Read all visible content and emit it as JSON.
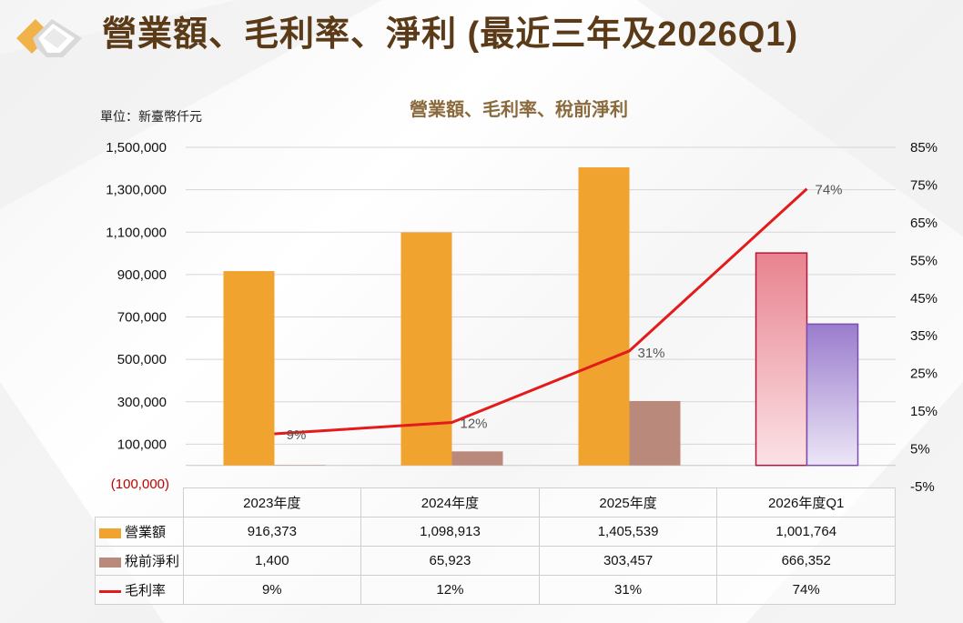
{
  "page": {
    "title": "營業額、毛利率、淨利 (最近三年及2026Q1)"
  },
  "chart_data": {
    "type": "bar",
    "title": "營業額、毛利率、稅前淨利",
    "unit_label": "單位：新臺幣仟元",
    "categories": [
      "2023年度",
      "2024年度",
      "2025年度",
      "2026年度Q1"
    ],
    "series": [
      {
        "name": "營業額",
        "kind": "bar",
        "axis": "left",
        "color": "#f0a32e",
        "values": [
          916373,
          1098913,
          1405539,
          1001764
        ],
        "display": [
          "916,373",
          "1,098,913",
          "1,405,539",
          "1,001,764"
        ]
      },
      {
        "name": "稅前淨利",
        "kind": "bar",
        "axis": "left",
        "color": "#b98a7c",
        "values": [
          1400,
          65923,
          303457,
          666352
        ],
        "display": [
          "1,400",
          "65,923",
          "303,457",
          "666,352"
        ]
      },
      {
        "name": "毛利率",
        "kind": "line",
        "axis": "right",
        "color": "#e31b1b",
        "values": [
          9,
          12,
          31,
          74
        ],
        "display": [
          "9%",
          "12%",
          "31%",
          "74%"
        ]
      }
    ],
    "highlight_category": "2026年度Q1",
    "highlight_colors": {
      "revenue_top": "#e8838f",
      "revenue_bottom": "#fbe2e6",
      "revenue_border": "#b5163a",
      "profit_top": "#9a7ccd",
      "profit_bottom": "#ece6f6",
      "profit_border": "#7a4fb0"
    },
    "y_left": {
      "ylim": [
        -100000,
        1500000
      ],
      "ticks": [
        1500000,
        1300000,
        1100000,
        900000,
        700000,
        500000,
        300000,
        100000
      ],
      "tick_labels": [
        "1,500,000",
        "1,300,000",
        "1,100,000",
        "900,000",
        "700,000",
        "500,000",
        "300,000",
        "100,000"
      ],
      "negative_tick_label": "(100,000)"
    },
    "y_right": {
      "ylim": [
        -5,
        85
      ],
      "ticks": [
        85,
        75,
        65,
        55,
        45,
        35,
        25,
        15,
        5,
        -5
      ],
      "tick_labels": [
        "85%",
        "75%",
        "65%",
        "55%",
        "45%",
        "35%",
        "25%",
        "15%",
        "5%",
        "-5%"
      ]
    },
    "grid": true,
    "legend": "table-below"
  }
}
